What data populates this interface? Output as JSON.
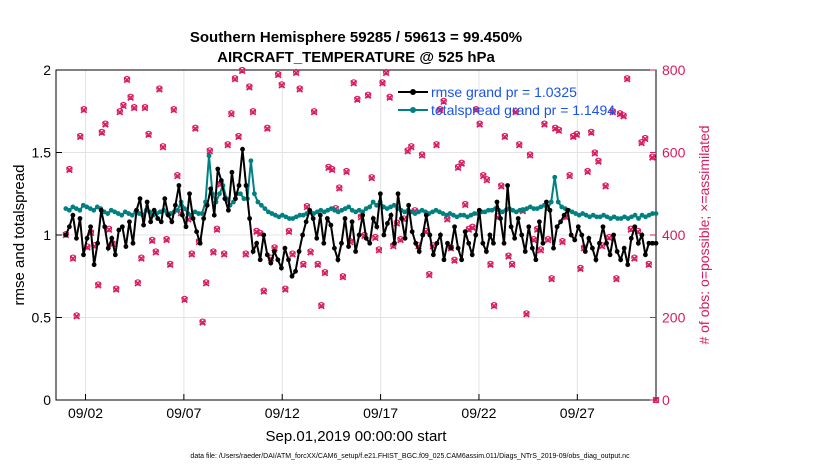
{
  "chart_data": {
    "type": "line",
    "title_line1": "Southern Hemisphere 59285 / 59613 = 99.450%",
    "title_line2": "AIRCRAFT_TEMPERATURE @ 525 hPa",
    "xlabel": "Sep.01,2019 00:00:00 start",
    "ylabel": "rmse and totalspread",
    "y2label": "# of obs: o=possible; ×=assimilated",
    "footnote": "data file: /Users/raeder/DAI/ATM_forcXX/CAM6_setup/f.e21.FHIST_BGC.f09_025.CAM6assim.011/Diags_NTrS_2019-09/obs_diag_output.nc",
    "xlim": [
      0.5,
      31
    ],
    "ylim": [
      0,
      2
    ],
    "y2lim": [
      0,
      800
    ],
    "x_ticks": [
      {
        "x": 2,
        "label": "09/02"
      },
      {
        "x": 7,
        "label": "09/07"
      },
      {
        "x": 12,
        "label": "09/12"
      },
      {
        "x": 17,
        "label": "09/17"
      },
      {
        "x": 22,
        "label": "09/22"
      },
      {
        "x": 27,
        "label": "09/27"
      }
    ],
    "y_ticks": [
      {
        "v": 0,
        "label": "0"
      },
      {
        "v": 0.5,
        "label": "0.5"
      },
      {
        "v": 1,
        "label": "1"
      },
      {
        "v": 1.5,
        "label": "1.5"
      },
      {
        "v": 2,
        "label": "2"
      }
    ],
    "y2_ticks": [
      {
        "v": 0,
        "label": "0"
      },
      {
        "v": 200,
        "label": "200"
      },
      {
        "v": 400,
        "label": "400"
      },
      {
        "v": 600,
        "label": "600"
      },
      {
        "v": 800,
        "label": "800"
      }
    ],
    "colors": {
      "rmse": "#000000",
      "spread": "#008080",
      "obs": "#d81b60",
      "legend_text": "#1a53e6"
    },
    "series": [
      {
        "name": "rmse grand pr = 1.0325",
        "values": [
          1.0,
          1.05,
          1.12,
          0.98,
          1.1,
          0.88,
          0.98,
          1.05,
          0.82,
          0.95,
          1.15,
          1.05,
          0.92,
          0.98,
          0.88,
          1.03,
          1.05,
          0.93,
          1.08,
          0.95,
          1.15,
          1.22,
          1.06,
          1.2,
          1.08,
          1.15,
          1.1,
          1.08,
          1.22,
          1.12,
          1.08,
          1.18,
          1.3,
          1.12,
          1.05,
          1.25,
          1.1,
          1.02,
          0.95,
          1.1,
          1.18,
          1.28,
          1.12,
          1.4,
          1.33,
          1.22,
          1.15,
          1.38,
          1.22,
          1.3,
          1.52,
          1.3,
          1.1,
          0.9,
          0.95,
          0.85,
          1.0,
          0.88,
          0.83,
          0.9,
          0.85,
          0.8,
          0.92,
          0.85,
          0.75,
          0.78,
          0.9,
          1.0,
          1.08,
          1.15,
          1.1,
          0.98,
          1.12,
          0.95,
          1.1,
          1.06,
          0.92,
          0.85,
          0.95,
          1.1,
          0.93,
          1.08,
          0.9,
          1.0,
          1.12,
          0.98,
          0.95,
          1.1,
          1.05,
          1.25,
          1.0,
          1.07,
          1.12,
          0.95,
          1.25,
          1.1,
          0.98,
          1.18,
          1.02,
          0.95,
          0.9,
          1.0,
          1.12,
          1.0,
          0.88,
          0.95,
          1.0,
          0.85,
          0.95,
          0.92,
          1.05,
          0.92,
          0.85,
          1.02,
          0.95,
          0.88,
          1.0,
          1.15,
          0.95,
          0.9,
          1.0,
          0.95,
          1.2,
          1.1,
          0.95,
          1.3,
          1.05,
          0.98,
          1.1,
          1.0,
          0.9,
          1.05,
          0.92,
          0.85,
          1.08,
          0.95,
          1.2,
          1.15,
          0.92,
          1.05,
          1.08,
          1.12,
          1.15,
          1.0,
          0.97,
          1.05,
          1.0,
          0.9,
          0.98,
          0.92,
          0.85,
          0.95,
          1.05,
          0.95,
          0.88,
          1.0,
          0.9,
          0.85,
          0.92,
          0.82,
          0.98,
          1.05,
          0.95,
          1.0,
          0.88,
          0.95,
          0.95,
          0.95
        ]
      },
      {
        "name": "totalspread grand pr = 1.1494",
        "values": [
          1.16,
          1.15,
          1.17,
          1.16,
          1.15,
          1.18,
          1.17,
          1.16,
          1.15,
          1.17,
          1.16,
          1.14,
          1.13,
          1.15,
          1.14,
          1.13,
          1.12,
          1.14,
          1.13,
          1.12,
          1.14,
          1.13,
          1.12,
          1.15,
          1.14,
          1.12,
          1.13,
          1.14,
          1.15,
          1.13,
          1.13,
          1.14,
          1.15,
          1.2,
          1.16,
          1.13,
          1.12,
          1.14,
          1.13,
          1.13,
          1.2,
          1.48,
          1.25,
          1.2,
          1.25,
          1.3,
          1.22,
          1.18,
          1.2,
          1.25,
          1.25,
          1.22,
          1.22,
          1.45,
          1.25,
          1.2,
          1.18,
          1.16,
          1.14,
          1.13,
          1.12,
          1.11,
          1.12,
          1.11,
          1.1,
          1.1,
          1.11,
          1.12,
          1.12,
          1.13,
          1.14,
          1.13,
          1.14,
          1.15,
          1.14,
          1.15,
          1.16,
          1.15,
          1.14,
          1.15,
          1.16,
          1.17,
          1.15,
          1.14,
          1.15,
          1.14,
          1.16,
          1.17,
          1.2,
          1.18,
          1.2,
          1.17,
          1.16,
          1.17,
          1.18,
          1.16,
          1.15,
          1.14,
          1.15,
          1.14,
          1.13,
          1.14,
          1.15,
          1.14,
          1.13,
          1.14,
          1.15,
          1.14,
          1.13,
          1.12,
          1.13,
          1.12,
          1.11,
          1.12,
          1.12,
          1.11,
          1.12,
          1.13,
          1.13,
          1.14,
          1.14,
          1.15,
          1.15,
          1.16,
          1.15,
          1.14,
          1.15,
          1.16,
          1.15,
          1.14,
          1.15,
          1.15,
          1.16,
          1.17,
          1.16,
          1.16,
          1.17,
          1.18,
          1.16,
          1.2,
          1.35,
          1.2,
          1.17,
          1.16,
          1.15,
          1.14,
          1.13,
          1.12,
          1.13,
          1.12,
          1.11,
          1.12,
          1.11,
          1.11,
          1.12,
          1.11,
          1.1,
          1.11,
          1.1,
          1.1,
          1.11,
          1.1,
          1.11,
          1.12,
          1.1,
          1.12,
          1.11,
          1.12,
          1.13,
          1.13
        ]
      }
    ],
    "obs_possible": [
      402,
      560,
      345,
      205,
      640,
      705,
      372,
      407,
      375,
      280,
      650,
      670,
      415,
      380,
      270,
      700,
      715,
      778,
      735,
      710,
      285,
      345,
      710,
      645,
      388,
      360,
      755,
      615,
      390,
      330,
      705,
      545,
      455,
      245,
      440,
      355,
      660,
      385,
      190,
      285,
      605,
      360,
      415,
      525,
      355,
      620,
      695,
      780,
      640,
      800,
      355,
      760,
      700,
      410,
      405,
      265,
      660,
      345,
      370,
      790,
      765,
      270,
      410,
      355,
      795,
      755,
      330,
      470,
      360,
      700,
      330,
      230,
      310,
      565,
      560,
      465,
      515,
      300,
      555,
      385,
      770,
      730,
      445,
      400,
      740,
      540,
      395,
      365,
      770,
      795,
      735,
      375,
      430,
      390,
      440,
      605,
      615,
      460,
      375,
      595,
      410,
      305,
      375,
      620,
      705,
      725,
      440,
      370,
      340,
      565,
      575,
      475,
      415,
      420,
      705,
      670,
      545,
      535,
      330,
      230,
      445,
      520,
      640,
      350,
      330,
      700,
      620,
      460,
      210,
      595,
      390,
      415,
      365,
      670,
      390,
      295,
      660,
      655,
      385,
      445,
      545,
      640,
      645,
      320,
      370,
      555,
      650,
      600,
      580,
      375,
      520,
      395,
      700,
      295,
      695,
      690,
      780,
      415,
      345,
      410,
      625,
      635,
      330,
      590,
      0
    ],
    "obs_assimilated": [
      400,
      558,
      343,
      203,
      638,
      703,
      370,
      405,
      373,
      278,
      648,
      668,
      413,
      378,
      268,
      698,
      713,
      776,
      733,
      708,
      283,
      343,
      708,
      643,
      386,
      358,
      753,
      613,
      388,
      328,
      703,
      543,
      453,
      243,
      438,
      353,
      658,
      383,
      188,
      283,
      603,
      358,
      413,
      523,
      353,
      618,
      693,
      778,
      638,
      798,
      353,
      758,
      698,
      408,
      403,
      263,
      658,
      343,
      368,
      788,
      763,
      268,
      408,
      353,
      793,
      753,
      328,
      468,
      358,
      698,
      328,
      228,
      308,
      563,
      558,
      463,
      513,
      298,
      553,
      383,
      768,
      728,
      443,
      398,
      738,
      538,
      393,
      363,
      768,
      793,
      733,
      373,
      428,
      388,
      438,
      603,
      613,
      458,
      373,
      593,
      408,
      303,
      373,
      618,
      703,
      723,
      438,
      368,
      338,
      563,
      573,
      473,
      413,
      418,
      703,
      668,
      543,
      533,
      328,
      228,
      443,
      518,
      638,
      348,
      328,
      698,
      618,
      458,
      208,
      593,
      388,
      413,
      363,
      668,
      388,
      293,
      658,
      653,
      383,
      443,
      543,
      638,
      643,
      318,
      368,
      553,
      648,
      598,
      578,
      373,
      518,
      393,
      698,
      293,
      693,
      688,
      778,
      413,
      343,
      408,
      623,
      633,
      328,
      588,
      0
    ]
  }
}
